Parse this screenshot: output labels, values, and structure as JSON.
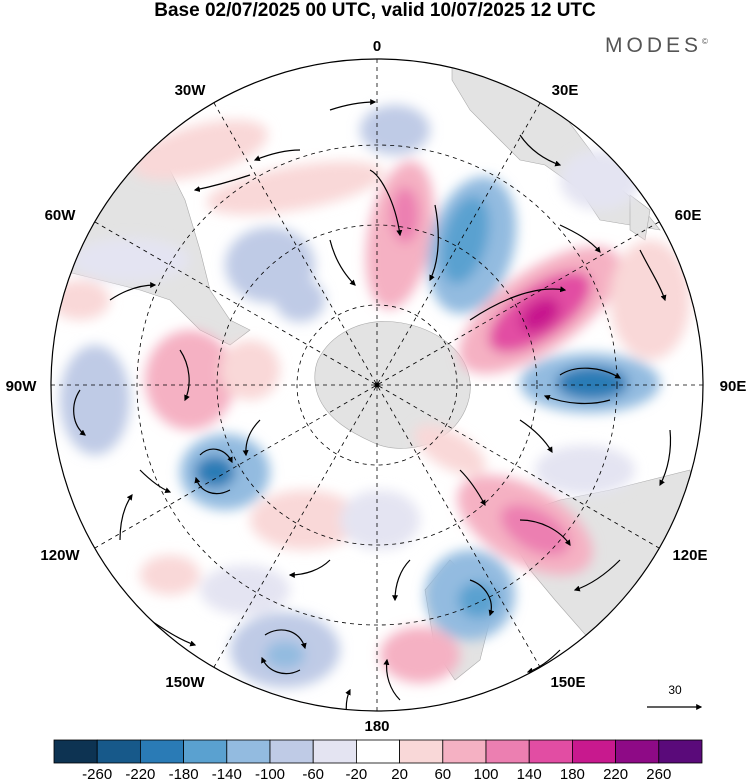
{
  "title": "Base 02/07/2025 00 UTC, valid 10/07/2025 12 UTC",
  "brand": "MODES",
  "brand_mark": "©",
  "longitude_labels": [
    "0",
    "30E",
    "60E",
    "90E",
    "120E",
    "150E",
    "180",
    "150W",
    "120W",
    "90W",
    "60W",
    "30W"
  ],
  "reference_vector": "30",
  "colorbar": {
    "ticks": [
      "-260",
      "-220",
      "-180",
      "-140",
      "-100",
      "-60",
      "-20",
      "20",
      "60",
      "100",
      "140",
      "180",
      "220",
      "260"
    ],
    "colors": [
      "#0d3352",
      "#17598a",
      "#2a7bb6",
      "#5aa1d0",
      "#93bbe0",
      "#bfcbe6",
      "#e4e4f2",
      "#ffffff",
      "#f9d8d8",
      "#f5b1c3",
      "#ec7fb1",
      "#e24da3",
      "#c8198e",
      "#8e0a86",
      "#5a0a7a"
    ]
  },
  "colors": {
    "land": "#e3e3e3",
    "grid": "#000000"
  }
}
